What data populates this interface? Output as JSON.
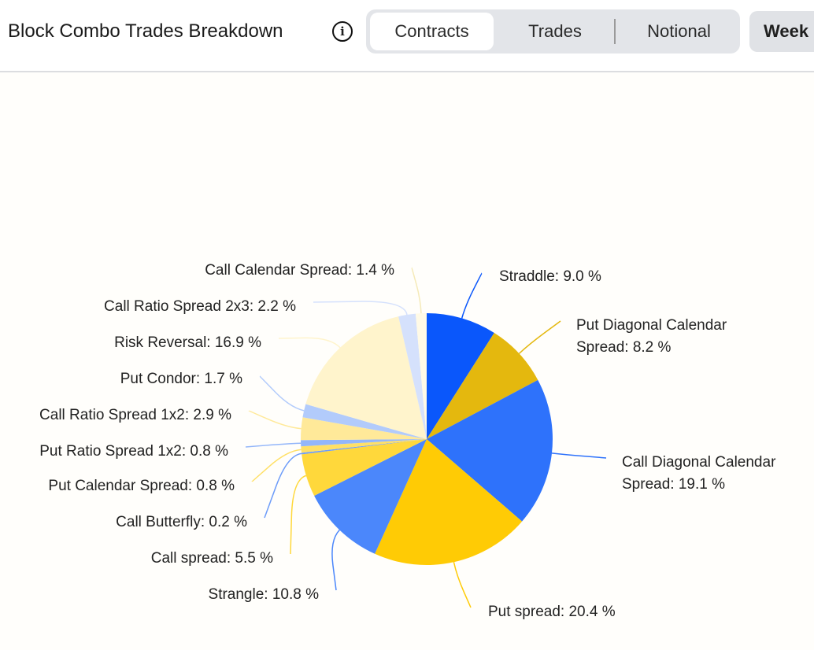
{
  "header": {
    "title": "Block Combo Trades Breakdown",
    "info_icon": "info-icon",
    "toggle": [
      "Contracts",
      "Trades",
      "Notional"
    ],
    "active": "Contracts",
    "period": "Week"
  },
  "chart_data": {
    "type": "pie",
    "unit": "%",
    "slices": [
      {
        "label": "Straddle",
        "value": 9.0,
        "color": "#0a57fb"
      },
      {
        "label": "Put Diagonal Calendar Spread",
        "value": 8.2,
        "color": "#e4b80e"
      },
      {
        "label": "Call Diagonal Calendar Spread",
        "value": 19.1,
        "color": "#2e72fb"
      },
      {
        "label": "Put spread",
        "value": 20.4,
        "color": "#ffcb05"
      },
      {
        "label": "Strangle",
        "value": 10.8,
        "color": "#4b87fb"
      },
      {
        "label": "Call spread",
        "value": 5.5,
        "color": "#ffd83b"
      },
      {
        "label": "Call Butterfly",
        "value": 0.2,
        "color": "#6d9cf9"
      },
      {
        "label": "Put Calendar Spread",
        "value": 0.8,
        "color": "#ffe066"
      },
      {
        "label": "Put Ratio Spread 1x2",
        "value": 0.8,
        "color": "#93b6fa"
      },
      {
        "label": "Call Ratio Spread 1x2",
        "value": 2.9,
        "color": "#ffe999"
      },
      {
        "label": "Put Condor",
        "value": 1.7,
        "color": "#b2cbfb"
      },
      {
        "label": "Risk Reversal",
        "value": 16.9,
        "color": "#fff4cc"
      },
      {
        "label": "Call Ratio Spread 2x3",
        "value": 2.2,
        "color": "#d5e1fc"
      },
      {
        "label": "Call Calendar Spread",
        "value": 1.4,
        "color": "#fffae6"
      }
    ]
  }
}
